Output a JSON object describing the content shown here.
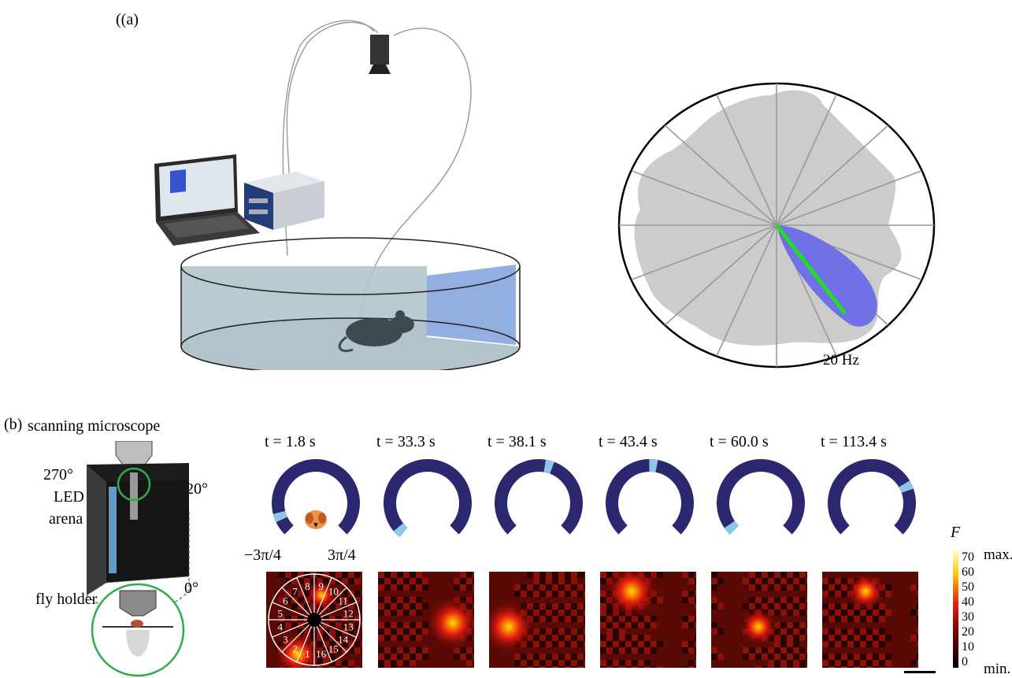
{
  "panel_a": {
    "label": "(a)",
    "polar_label": "20 Hz"
  },
  "panel_b": {
    "label": "(b)",
    "microscope_label": "scanning microscope",
    "deg_270": "270°",
    "deg_120": "120°",
    "deg_0": "0°",
    "led_line1": "LED",
    "led_line2": "arena",
    "fly_holder": "fly holder",
    "angle_left": "−3π/4",
    "angle_right": "3π/4",
    "times": [
      "t = 1.8 s",
      "t = 33.3 s",
      "t = 38.1 s",
      "t = 43.4 s",
      "t = 60.0 s",
      "t = 113.4 s"
    ],
    "wedge_numbers": [
      "1",
      "2",
      "3",
      "4",
      "5",
      "6",
      "7",
      "8",
      "9",
      "10",
      "11",
      "12",
      "13",
      "14",
      "15",
      "16"
    ],
    "colorbar": {
      "title": "F",
      "ticks": [
        "70",
        "60",
        "50",
        "40",
        "30",
        "20",
        "10",
        "0"
      ],
      "max_label": "max.",
      "min_label": "min."
    }
  },
  "colors": {
    "arena_ring": "#2b2870",
    "bar_highlight": "#8ec6e6",
    "tuning_fill": "#6b6be8",
    "preferred_line": "#22dd22",
    "polar_bg": "#cccccc"
  }
}
